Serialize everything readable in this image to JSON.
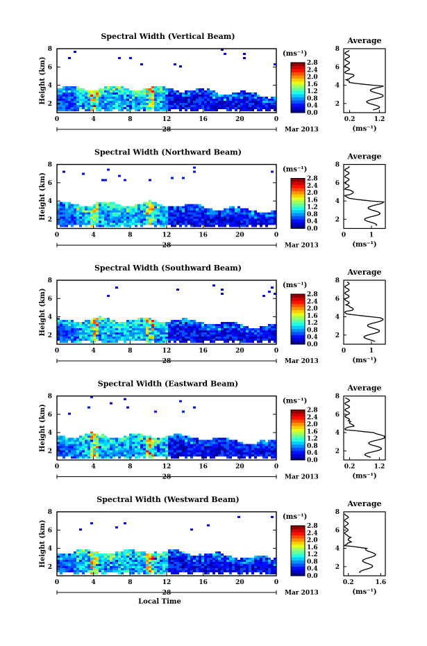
{
  "figure": {
    "bottom_xlabel": "Local Time",
    "date_label": "Mar 2013",
    "day_label": "28",
    "ylabel": "Height (km)",
    "unit_label": "(ms⁻¹)",
    "average_title": "Average",
    "average_xlabel": "(ms⁻¹)"
  },
  "colormap": [
    "#00008f",
    "#0000d0",
    "#0010ff",
    "#0050ff",
    "#0090ff",
    "#00d0ff",
    "#20ffe0",
    "#60ffa0",
    "#a0ff60",
    "#e0ff20",
    "#ffd000",
    "#ff9000",
    "#ff5000",
    "#ff1000",
    "#d00000",
    "#8f0000"
  ],
  "chart_data": [
    {
      "type": "heatmap",
      "title": "Spectral Width (Vertical Beam)",
      "x_ticks": [
        "0",
        "4",
        "8",
        "12",
        "16",
        "20",
        "0"
      ],
      "y_ticks": [
        "2",
        "4",
        "6",
        "8"
      ],
      "xlim": [
        0,
        24
      ],
      "ylim": [
        1,
        8
      ],
      "colorbar_ticks": [
        "0.0",
        "0.4",
        "0.8",
        "1.2",
        "1.6",
        "2.0",
        "2.4",
        "2.8"
      ],
      "colorbar_range": [
        0,
        2.8
      ],
      "average_profile": {
        "x_ticks": [
          "0.2",
          "1.2"
        ],
        "xlim": [
          0,
          1.4
        ],
        "y_ticks": [
          "2",
          "4",
          "6",
          "8"
        ],
        "ylim": [
          1,
          8
        ]
      }
    },
    {
      "type": "heatmap",
      "title": "Spectral Width (Northward Beam)",
      "x_ticks": [
        "0",
        "4",
        "8",
        "12",
        "16",
        "20",
        "0"
      ],
      "y_ticks": [
        "2",
        "4",
        "6",
        "8"
      ],
      "xlim": [
        0,
        24
      ],
      "ylim": [
        1,
        8
      ],
      "colorbar_ticks": [
        "0.0",
        "0.4",
        "0.8",
        "1.2",
        "1.6",
        "2.0",
        "2.4",
        "2.8"
      ],
      "colorbar_range": [
        0,
        2.8
      ],
      "average_profile": {
        "x_ticks": [
          "0",
          "1"
        ],
        "xlim": [
          0,
          1.5
        ],
        "y_ticks": [
          "2",
          "4",
          "6",
          "8"
        ],
        "ylim": [
          1,
          8
        ]
      }
    },
    {
      "type": "heatmap",
      "title": "Spectral Width (Southward Beam)",
      "x_ticks": [
        "0",
        "4",
        "8",
        "12",
        "16",
        "20",
        "0"
      ],
      "y_ticks": [
        "2",
        "4",
        "6",
        "8"
      ],
      "xlim": [
        0,
        24
      ],
      "ylim": [
        1,
        8
      ],
      "colorbar_ticks": [
        "0.0",
        "0.4",
        "0.8",
        "1.2",
        "1.6",
        "2.0",
        "2.4",
        "2.8"
      ],
      "colorbar_range": [
        0,
        2.8
      ],
      "average_profile": {
        "x_ticks": [
          "0",
          "1"
        ],
        "xlim": [
          0,
          1.5
        ],
        "y_ticks": [
          "2",
          "4",
          "6",
          "8"
        ],
        "ylim": [
          1,
          8
        ]
      }
    },
    {
      "type": "heatmap",
      "title": "Spectral Width (Eastward Beam)",
      "x_ticks": [
        "0",
        "4",
        "8",
        "12",
        "16",
        "20",
        "0"
      ],
      "y_ticks": [
        "2",
        "4",
        "6",
        "8"
      ],
      "xlim": [
        0,
        24
      ],
      "ylim": [
        1,
        8
      ],
      "colorbar_ticks": [
        "0.0",
        "0.4",
        "0.8",
        "1.2",
        "1.6",
        "2.0",
        "2.4",
        "2.8"
      ],
      "colorbar_range": [
        0,
        2.8
      ],
      "average_profile": {
        "x_ticks": [
          "0.2",
          "1.2"
        ],
        "xlim": [
          0,
          1.4
        ],
        "y_ticks": [
          "2",
          "4",
          "6",
          "8"
        ],
        "ylim": [
          1,
          8
        ]
      }
    },
    {
      "type": "heatmap",
      "title": "Spectral Width (Westward Beam)",
      "x_ticks": [
        "0",
        "4",
        "8",
        "12",
        "16",
        "20",
        "0"
      ],
      "y_ticks": [
        "2",
        "4",
        "6",
        "8"
      ],
      "xlim": [
        0,
        24
      ],
      "ylim": [
        1,
        8
      ],
      "colorbar_ticks": [
        "0.0",
        "0.4",
        "0.8",
        "1.2",
        "1.6",
        "2.0",
        "2.4",
        "2.8"
      ],
      "colorbar_range": [
        0,
        2.8
      ],
      "average_profile": {
        "x_ticks": [
          "0.2",
          "1.6"
        ],
        "xlim": [
          0,
          1.8
        ],
        "y_ticks": [
          "2",
          "4",
          "6",
          "8"
        ],
        "ylim": [
          1,
          8
        ]
      }
    }
  ]
}
